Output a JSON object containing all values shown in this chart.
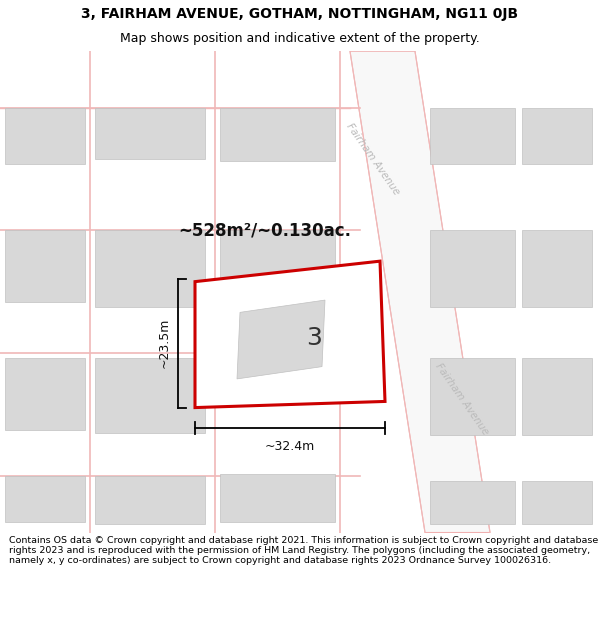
{
  "title_line1": "3, FAIRHAM AVENUE, GOTHAM, NOTTINGHAM, NG11 0JB",
  "title_line2": "Map shows position and indicative extent of the property.",
  "footer": "Contains OS data © Crown copyright and database right 2021. This information is subject to Crown copyright and database rights 2023 and is reproduced with the permission of HM Land Registry. The polygons (including the associated geometry, namely x, y co-ordinates) are subject to Crown copyright and database rights 2023 Ordnance Survey 100026316.",
  "map_background": "#f0eeee",
  "road_strip_color": "#f8f8f8",
  "road_line_color": "#f0b8b8",
  "building_color": "#d8d8d8",
  "building_edge_color": "#c0c0c0",
  "plot_edge_color": "#cc0000",
  "plot_fill": "#ffffff",
  "plot_label": "3",
  "area_text": "~528m²/~0.130ac.",
  "dim_width_label": "~32.4m",
  "dim_height_label": "~23.5m",
  "road_label": "Fairham Avenue",
  "road_label_color": "#bbbbbb",
  "title_fontsize": 10,
  "subtitle_fontsize": 9,
  "footer_fontsize": 6.8,
  "label_color": "#333333"
}
